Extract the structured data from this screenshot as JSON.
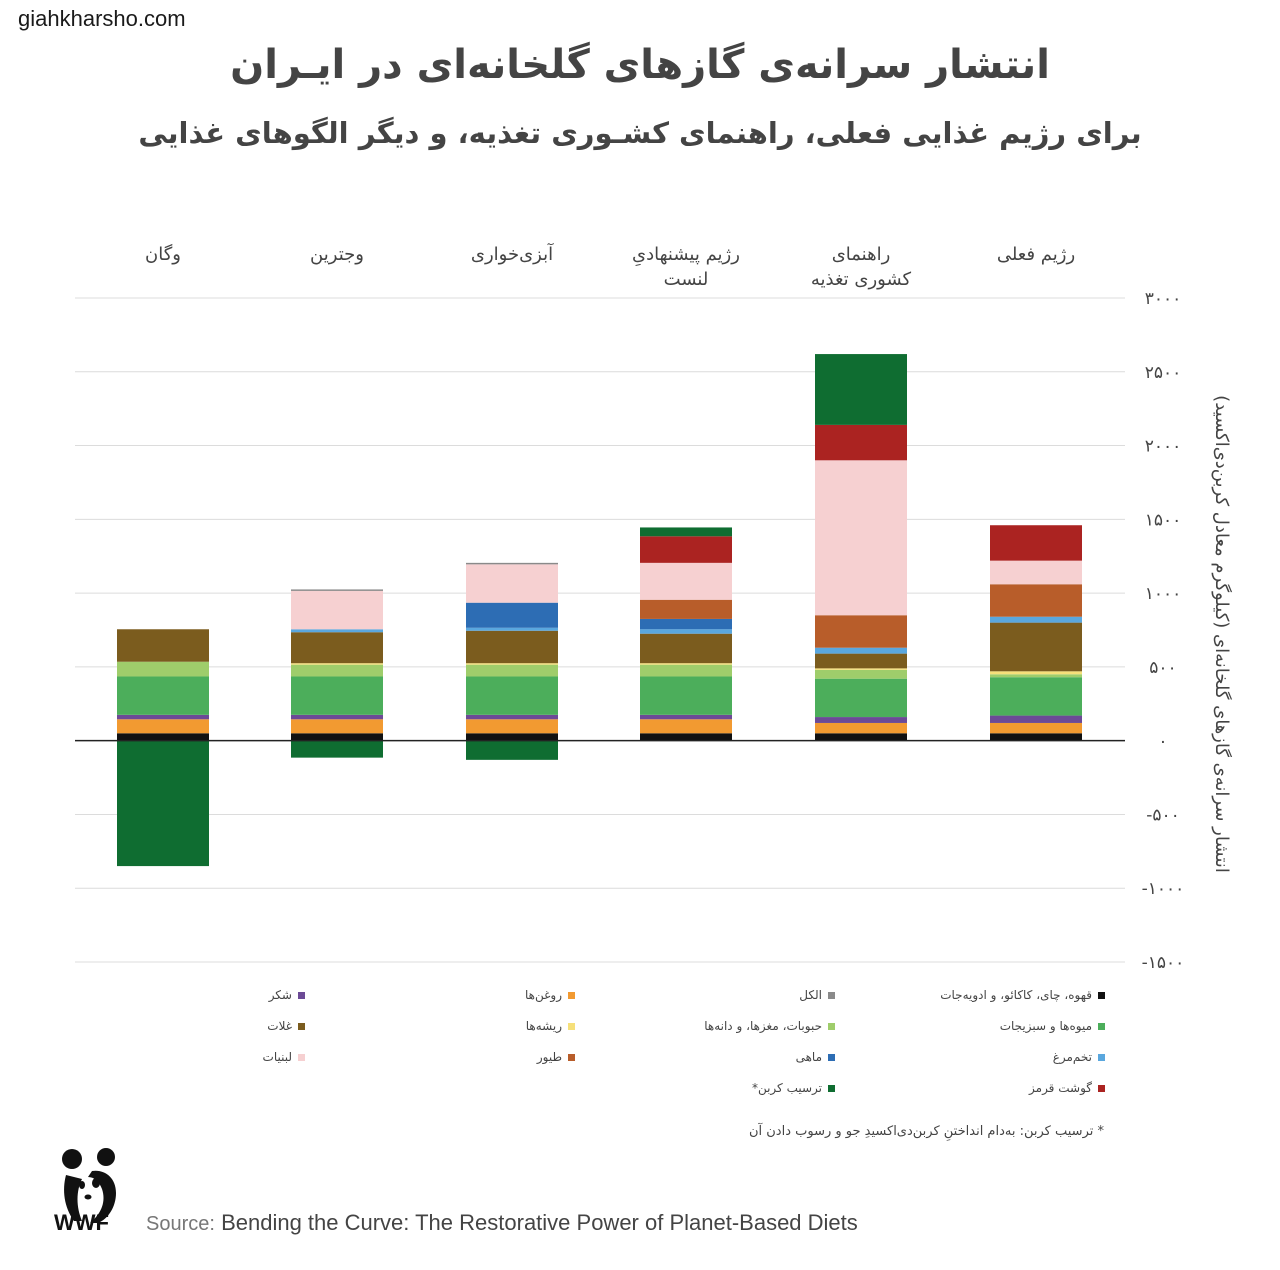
{
  "watermark": "giahkharsho.com",
  "title": "انتشار سرانه‌ی گازهای گلخانه‌ای در ایـران",
  "subtitle": "برای رژیم غذایی فعلی، راهنمای کشـوری تغذیه، و دیگر الگوهای غذایی",
  "footnote": "* ترسیب کربن: به‌دام انداختنِ کربن‌دی‌اکسیدِ جو و رسوب دادن آن",
  "source_label": "Source:",
  "source_text": "Bending the Curve: The Restorative Power of Planet-Based Diets",
  "logo_text": "WWF",
  "colors": {
    "coffee": "#111111",
    "oils": "#f29a31",
    "sugar": "#6c4a96",
    "fruitveg": "#4cae5b",
    "legumes": "#9fcd6b",
    "roots": "#f6e07a",
    "grains": "#7b5c1e",
    "eggs": "#5aa7de",
    "fish": "#2d6db4",
    "poultry": "#b85d2a",
    "dairy": "#f6d0d1",
    "redmeat": "#ab2321",
    "alcohol": "#8a8a8a",
    "sequestration": "#0f6d31"
  },
  "chart_data": {
    "type": "bar",
    "stacked": true,
    "ylabel": "انتشار سرانه‌ی گازهای گلخانه‌ای (کیلوگرم معادل کربن‌دی‌اکسید)",
    "ylim": [
      -1500,
      3000
    ],
    "yticks": [
      3000,
      2500,
      2000,
      1500,
      1000,
      500,
      0,
      -500,
      -1000,
      -1500
    ],
    "ytick_labels": [
      "۳۰۰۰",
      "۲۵۰۰",
      "۲۰۰۰",
      "۱۵۰۰",
      "۱۰۰۰",
      "۵۰۰",
      "۰",
      "-۵۰۰",
      "-۱۰۰۰",
      "-۱۵۰۰"
    ],
    "grid": true,
    "categories": [
      [
        "رژیم فعلی"
      ],
      [
        "راهنمای",
        "کشوری تغذیه"
      ],
      [
        "رژیم پیشنهادیِ",
        "لنست"
      ],
      [
        "آبزی‌خواری"
      ],
      [
        "وجترین"
      ],
      [
        "وگان"
      ]
    ],
    "series": [
      {
        "name": "قهوه، چای، کاکائو، و ادویه‌جات",
        "color_key": "coffee",
        "values": [
          50,
          50,
          50,
          50,
          50,
          50
        ]
      },
      {
        "name": "روغن‌ها",
        "color_key": "oils",
        "values": [
          70,
          70,
          95,
          95,
          95,
          95
        ]
      },
      {
        "name": "شکر",
        "color_key": "sugar",
        "values": [
          50,
          40,
          30,
          30,
          30,
          30
        ]
      },
      {
        "name": "میوه‌ها و سبزیجات",
        "color_key": "fruitveg",
        "values": [
          260,
          260,
          260,
          260,
          260,
          260
        ]
      },
      {
        "name": "حبوبات، مغزها، و دانه‌ها",
        "color_key": "legumes",
        "values": [
          20,
          60,
          80,
          80,
          80,
          100
        ]
      },
      {
        "name": "ریشه‌ها",
        "color_key": "roots",
        "values": [
          20,
          10,
          10,
          10,
          10,
          0
        ]
      },
      {
        "name": "غلات",
        "color_key": "grains",
        "values": [
          330,
          100,
          200,
          220,
          210,
          220
        ]
      },
      {
        "name": "تخم‌مرغ",
        "color_key": "eggs",
        "values": [
          40,
          40,
          30,
          20,
          20,
          0
        ]
      },
      {
        "name": "ماهی",
        "color_key": "fish",
        "values": [
          0,
          0,
          70,
          170,
          0,
          0
        ]
      },
      {
        "name": "طیور",
        "color_key": "poultry",
        "values": [
          220,
          220,
          130,
          0,
          0,
          0
        ]
      },
      {
        "name": "لبنیات",
        "color_key": "dairy",
        "values": [
          160,
          1050,
          250,
          260,
          260,
          0
        ]
      },
      {
        "name": "گوشت قرمز",
        "color_key": "redmeat",
        "values": [
          240,
          240,
          180,
          0,
          0,
          0
        ]
      },
      {
        "name": "الکل",
        "color_key": "alcohol",
        "values": [
          0,
          0,
          0,
          10,
          10,
          0
        ]
      },
      {
        "name": "ترسیب کربن*",
        "color_key": "sequestration",
        "values": [
          0,
          480,
          60,
          -130,
          -115,
          -850
        ]
      }
    ]
  },
  "legend": [
    {
      "name": "قهوه، چای، کاکائو، و ادویه‌جات",
      "color_key": "coffee"
    },
    {
      "name": "الکل",
      "color_key": "alcohol"
    },
    {
      "name": "روغن‌ها",
      "color_key": "oils"
    },
    {
      "name": "شکر",
      "color_key": "sugar"
    },
    {
      "name": "میوه‌ها و سبزیجات",
      "color_key": "fruitveg"
    },
    {
      "name": "حبوبات، مغزها، و دانه‌ها",
      "color_key": "legumes"
    },
    {
      "name": "ریشه‌ها",
      "color_key": "roots"
    },
    {
      "name": "غلات",
      "color_key": "grains"
    },
    {
      "name": "تخم‌مرغ",
      "color_key": "eggs"
    },
    {
      "name": "ماهی",
      "color_key": "fish"
    },
    {
      "name": "طیور",
      "color_key": "poultry"
    },
    {
      "name": "لبنیات",
      "color_key": "dairy"
    },
    {
      "name": "گوشت قرمز",
      "color_key": "redmeat"
    },
    {
      "name": "ترسیب کربن*",
      "color_key": "sequestration"
    }
  ]
}
